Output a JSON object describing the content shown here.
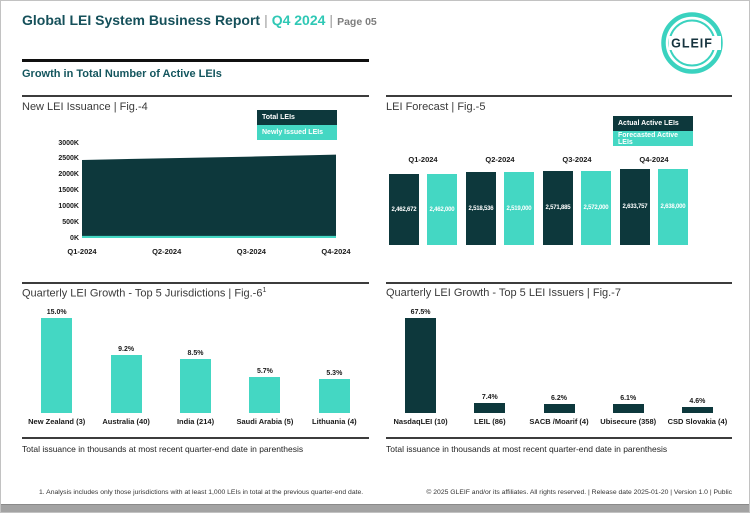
{
  "header": {
    "title": "Global LEI System Business Report",
    "sep1": "|",
    "period": "Q4 2024",
    "sep2": "|",
    "page": "Page 05",
    "logo": "GLEIF"
  },
  "section_title": "Growth in Total Number of Active LEIs",
  "colors": {
    "dark_teal": "#0d383c",
    "bright_teal": "#44d7c3",
    "accent_period": "#2fc8b5",
    "heading_teal": "#14565e"
  },
  "chart_data": [
    {
      "id": "fig4",
      "type": "area",
      "title": "New LEI Issuance | Fig.-4",
      "x": [
        "Q1-2024",
        "Q2-2024",
        "Q3-2024",
        "Q4-2024"
      ],
      "series": [
        {
          "name": "Total LEIs",
          "color": "#0d383c",
          "values": [
            2462672,
            2518536,
            2571885,
            2633757
          ]
        },
        {
          "name": "Newly Issued LEIs",
          "color": "#44d7c3",
          "values": [
            65000,
            65000,
            65000,
            65000
          ]
        }
      ],
      "ylim": [
        0,
        3000000
      ],
      "yticks": [
        "3000K",
        "2500K",
        "2000K",
        "1500K",
        "1000K",
        "500K",
        "0K"
      ],
      "grid": false,
      "legend_position": "top-right"
    },
    {
      "id": "fig5",
      "type": "bar",
      "title": "LEI Forecast | Fig.-5",
      "categories": [
        "Q1-2024",
        "Q2-2024",
        "Q3-2024",
        "Q4-2024"
      ],
      "series": [
        {
          "name": "Actual Active LEIs",
          "color": "#0d383c",
          "values": [
            2462672,
            2518536,
            2571885,
            2633757
          ]
        },
        {
          "name": "Forecasted Active LEIs",
          "color": "#44d7c3",
          "values": [
            2462000,
            2519000,
            2572000,
            2638000
          ]
        }
      ],
      "value_labels": true,
      "legend_position": "top-right"
    },
    {
      "id": "fig6",
      "type": "bar",
      "title": "Quarterly LEI Growth - Top 5 Jurisdictions | Fig.-6",
      "title_sup": "1",
      "categories": [
        "New Zealand (3)",
        "Australia (40)",
        "India (214)",
        "Saudi Arabia (5)",
        "Lithuania (4)"
      ],
      "values": [
        15.0,
        9.2,
        8.5,
        5.7,
        5.3
      ],
      "unit": "%",
      "color": "#44d7c3"
    },
    {
      "id": "fig7",
      "type": "bar",
      "title": "Quarterly LEI Growth - Top 5 LEI Issuers | Fig.-7",
      "categories": [
        "NasdaqLEI (10)",
        "LEIL (86)",
        "SACB /Moarif (4)",
        "Ubisecure (358)",
        "CSD Slovakia (4)"
      ],
      "values": [
        67.5,
        7.4,
        6.2,
        6.1,
        4.6
      ],
      "unit": "%",
      "color": "#0d383c"
    }
  ],
  "footers": {
    "left_note": "Total issuance in thousands at most recent quarter-end date in parenthesis",
    "right_note": "Total issuance in thousands at most recent quarter-end date in parenthesis",
    "footnote": "1. Analysis includes only those jurisdictions with at least 1,000 LEIs in total at the previous quarter-end date.",
    "copyright": "© 2025 GLEIF and/or its affiliates. All rights reserved. | Release date 2025-01-20 | Version 1.0 | Public"
  }
}
